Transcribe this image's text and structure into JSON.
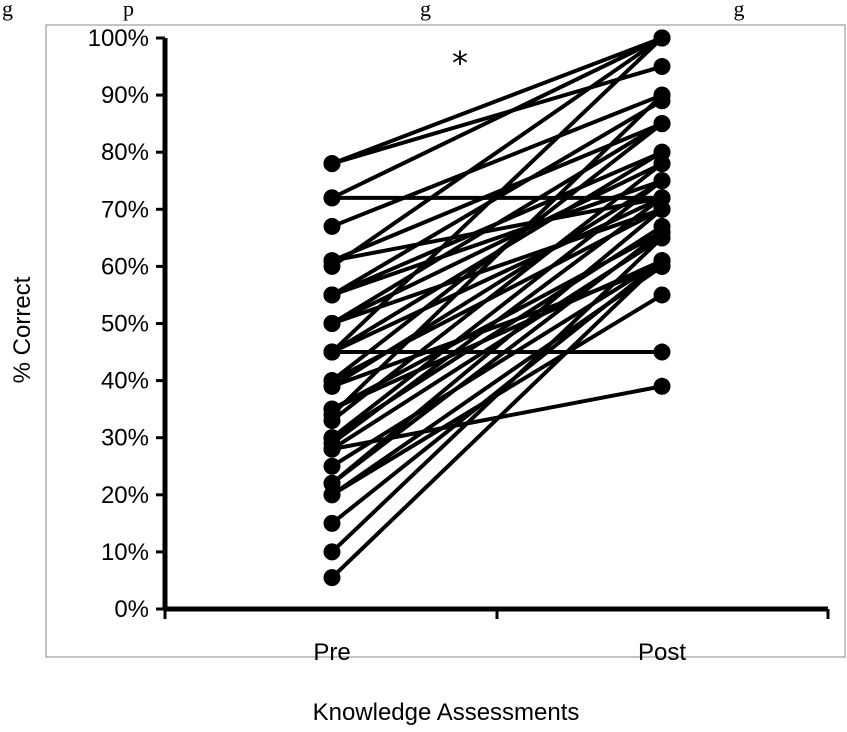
{
  "caption_fragment": "g                    p                                                    g                                                       g",
  "chart_data": {
    "type": "line",
    "title": "",
    "xlabel": "Knowledge Assessments",
    "ylabel": "% Correct",
    "categories": [
      "Pre",
      "Post"
    ],
    "ylim": [
      0,
      100
    ],
    "yticks": [
      "0%",
      "10%",
      "20%",
      "30%",
      "40%",
      "50%",
      "60%",
      "70%",
      "80%",
      "90%",
      "100%"
    ],
    "annotation": "*",
    "line_color": "#000000",
    "pairs": [
      [
        78,
        95
      ],
      [
        78,
        100
      ],
      [
        72,
        72
      ],
      [
        72,
        100
      ],
      [
        67,
        90
      ],
      [
        61,
        85
      ],
      [
        61,
        72
      ],
      [
        60,
        100
      ],
      [
        55,
        80
      ],
      [
        55,
        75
      ],
      [
        55,
        89
      ],
      [
        50,
        78
      ],
      [
        50,
        70
      ],
      [
        50,
        85
      ],
      [
        45,
        45
      ],
      [
        45,
        100
      ],
      [
        45,
        80
      ],
      [
        45,
        72
      ],
      [
        40,
        85
      ],
      [
        40,
        70
      ],
      [
        39,
        60
      ],
      [
        39,
        75
      ],
      [
        35,
        66
      ],
      [
        35,
        61
      ],
      [
        34,
        90
      ],
      [
        33,
        78
      ],
      [
        30,
        67
      ],
      [
        30,
        75
      ],
      [
        29,
        72
      ],
      [
        28,
        39
      ],
      [
        28,
        65
      ],
      [
        25,
        61
      ],
      [
        22,
        70
      ],
      [
        22,
        66
      ],
      [
        20,
        60
      ],
      [
        20,
        55
      ],
      [
        15,
        61
      ],
      [
        10,
        65
      ],
      [
        5.5,
        61
      ]
    ]
  }
}
